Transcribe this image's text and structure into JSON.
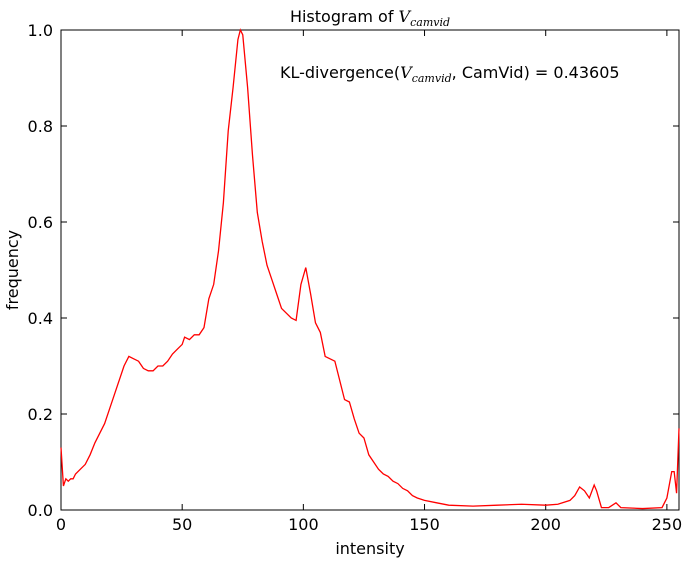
{
  "chart_data": {
    "type": "line",
    "title": [
      "Histogram of ",
      "V",
      "camvid"
    ],
    "annotation": [
      "KL-divergence(",
      "V",
      "camvid",
      ", CamVid) = 0.43605"
    ],
    "x_label": "intensity",
    "y_label": "frequency",
    "xlim": [
      0,
      255
    ],
    "ylim": [
      0,
      1
    ],
    "xticks": [
      0,
      50,
      100,
      150,
      200,
      250
    ],
    "yticks": [
      {
        "value": 0,
        "label": "0.0"
      },
      0.2,
      0.4,
      0.6,
      0.8,
      {
        "value": 1,
        "label": "1.0"
      }
    ],
    "x": [
      0,
      1,
      2,
      3,
      4,
      5,
      6,
      8,
      10,
      12,
      14,
      16,
      18,
      20,
      22,
      24,
      26,
      28,
      30,
      32,
      34,
      36,
      38,
      40,
      42,
      44,
      46,
      48,
      50,
      51,
      53,
      55,
      57,
      59,
      61,
      63,
      65,
      67,
      69,
      71,
      73,
      74,
      75,
      77,
      79,
      81,
      83,
      85,
      87,
      89,
      91,
      93,
      95,
      97,
      99,
      101,
      103,
      105,
      107,
      109,
      111,
      113,
      115,
      117,
      119,
      121,
      123,
      125,
      127,
      129,
      131,
      133,
      135,
      137,
      139,
      141,
      143,
      145,
      147,
      150,
      155,
      160,
      170,
      180,
      190,
      200,
      205,
      210,
      212,
      214,
      216,
      218,
      220,
      221,
      223,
      226,
      229,
      231,
      240,
      248,
      250,
      252,
      253,
      254,
      255
    ],
    "series": [
      {
        "name": "histogram",
        "color": "#ff0000",
        "values": [
          0.13,
          0.05,
          0.065,
          0.06,
          0.065,
          0.065,
          0.075,
          0.085,
          0.095,
          0.115,
          0.14,
          0.16,
          0.18,
          0.21,
          0.24,
          0.27,
          0.3,
          0.32,
          0.315,
          0.31,
          0.295,
          0.29,
          0.29,
          0.3,
          0.3,
          0.31,
          0.325,
          0.335,
          0.345,
          0.36,
          0.355,
          0.365,
          0.365,
          0.38,
          0.44,
          0.47,
          0.54,
          0.64,
          0.79,
          0.88,
          0.98,
          1.0,
          0.99,
          0.88,
          0.74,
          0.62,
          0.56,
          0.51,
          0.48,
          0.45,
          0.42,
          0.41,
          0.4,
          0.395,
          0.47,
          0.505,
          0.45,
          0.39,
          0.37,
          0.32,
          0.315,
          0.31,
          0.27,
          0.23,
          0.225,
          0.19,
          0.16,
          0.15,
          0.115,
          0.1,
          0.085,
          0.075,
          0.07,
          0.06,
          0.055,
          0.045,
          0.04,
          0.03,
          0.025,
          0.02,
          0.015,
          0.01,
          0.008,
          0.01,
          0.012,
          0.01,
          0.012,
          0.02,
          0.03,
          0.048,
          0.04,
          0.025,
          0.052,
          0.04,
          0.005,
          0.005,
          0.015,
          0.005,
          0.003,
          0.005,
          0.025,
          0.08,
          0.08,
          0.035,
          0.17
        ]
      }
    ]
  }
}
